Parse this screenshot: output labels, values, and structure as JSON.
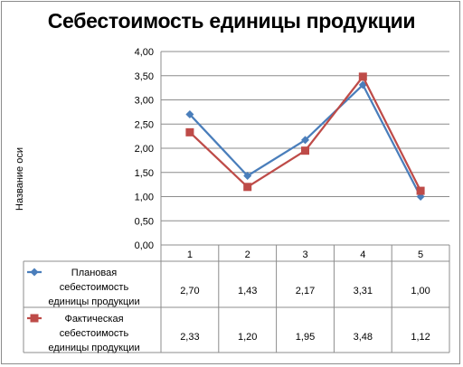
{
  "chart_data": {
    "type": "line",
    "title": "Себестоимость единицы продукции",
    "xlabel": "",
    "ylabel": "Название оси",
    "categories": [
      "1",
      "2",
      "3",
      "4",
      "5"
    ],
    "ylim": [
      0,
      4
    ],
    "yticks": [
      "0,00",
      "0,50",
      "1,00",
      "1,50",
      "2,00",
      "2,50",
      "3,00",
      "3,50",
      "4,00"
    ],
    "grid": true,
    "legend_placement": "data-table",
    "series": [
      {
        "name_lines": [
          "Плановая",
          "себестоимость",
          "единицы продукции"
        ],
        "values": [
          2.7,
          1.43,
          2.17,
          3.31,
          1.0
        ],
        "labels": [
          "2,70",
          "1,43",
          "2,17",
          "3,31",
          "1,00"
        ],
        "color": "#4a7ebb",
        "marker": "diamond"
      },
      {
        "name_lines": [
          "Фактическая",
          "себестоимость",
          "единицы продукции"
        ],
        "values": [
          2.33,
          1.2,
          1.95,
          3.48,
          1.12
        ],
        "labels": [
          "2,33",
          "1,20",
          "1,95",
          "3,48",
          "1,12"
        ],
        "color": "#be4b48",
        "marker": "square"
      }
    ]
  }
}
